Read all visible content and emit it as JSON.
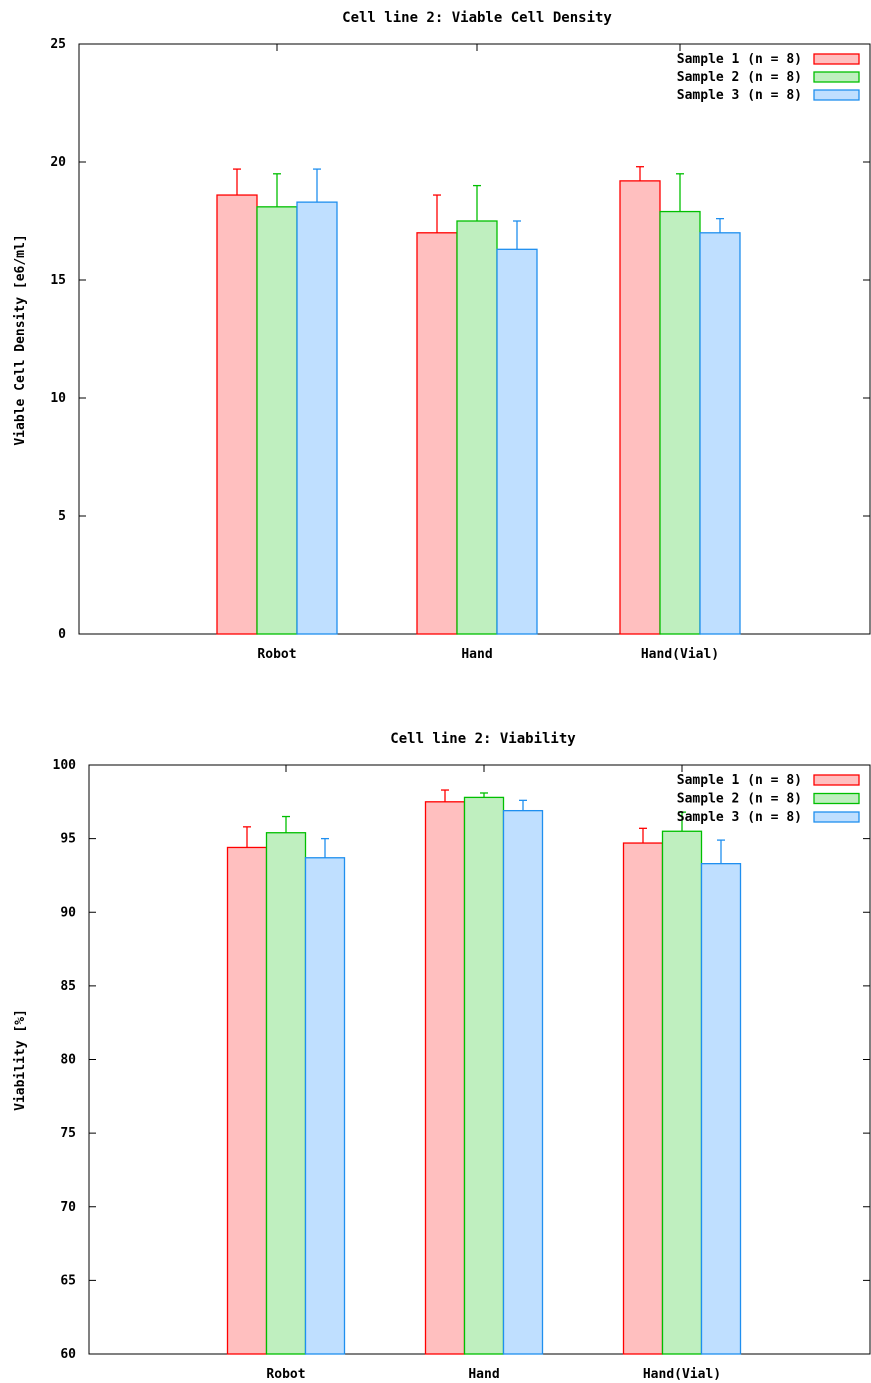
{
  "chart_data": [
    {
      "type": "bar",
      "title": "Cell line 2: Viable Cell Density",
      "xlabel": "",
      "ylabel": "Viable Cell Density [e6/ml]",
      "ylim": [
        0,
        25
      ],
      "yticks": [
        "0",
        "5",
        "10",
        "15",
        "20",
        "25"
      ],
      "categories": [
        "Robot",
        "Hand",
        "Hand(Vial)"
      ],
      "legend_position": "top-right",
      "grid": false,
      "series": [
        {
          "name": "Sample 1 (n = 8)",
          "color": "#ff0000",
          "fill": "#ffbfbf",
          "values": [
            18.6,
            17.0,
            19.2
          ],
          "errors": [
            1.1,
            1.6,
            0.6
          ]
        },
        {
          "name": "Sample 2 (n = 8)",
          "color": "#00bf00",
          "fill": "#bfefbf",
          "values": [
            18.1,
            17.5,
            17.9
          ],
          "errors": [
            1.4,
            1.5,
            1.6
          ]
        },
        {
          "name": "Sample 3 (n = 8)",
          "color": "#1f8fef",
          "fill": "#bfdfff",
          "values": [
            18.3,
            16.3,
            17.0
          ],
          "errors": [
            1.4,
            1.2,
            0.6
          ]
        }
      ]
    },
    {
      "type": "bar",
      "title": "Cell line 2: Viability",
      "xlabel": "",
      "ylabel": "Viability [%]",
      "ylim": [
        60,
        100
      ],
      "yticks": [
        "60",
        "65",
        "70",
        "75",
        "80",
        "85",
        "90",
        "95",
        "100"
      ],
      "categories": [
        "Robot",
        "Hand",
        "Hand(Vial)"
      ],
      "legend_position": "top-right",
      "grid": false,
      "series": [
        {
          "name": "Sample 1 (n = 8)",
          "color": "#ff0000",
          "fill": "#ffbfbf",
          "values": [
            94.4,
            97.5,
            94.7
          ],
          "errors": [
            1.4,
            0.8,
            1.0
          ]
        },
        {
          "name": "Sample 2 (n = 8)",
          "color": "#00bf00",
          "fill": "#bfefbf",
          "values": [
            95.4,
            97.8,
            95.5
          ],
          "errors": [
            1.1,
            0.3,
            1.3
          ]
        },
        {
          "name": "Sample 3 (n = 8)",
          "color": "#1f8fef",
          "fill": "#bfdfff",
          "values": [
            93.7,
            96.9,
            93.3
          ],
          "errors": [
            1.3,
            0.7,
            1.6
          ]
        }
      ]
    }
  ]
}
